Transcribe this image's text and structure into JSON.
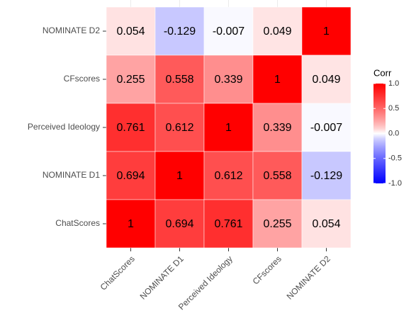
{
  "chart_data": {
    "type": "heatmap",
    "x_categories": [
      "ChatScores",
      "NOMINATE D1",
      "Perceived Ideology",
      "CFscores",
      "NOMINATE D2"
    ],
    "y_categories": [
      "NOMINATE D2",
      "CFscores",
      "Perceived Ideology",
      "NOMINATE D1",
      "ChatScores"
    ],
    "matrix": [
      [
        0.054,
        -0.129,
        -0.007,
        0.049,
        1
      ],
      [
        0.255,
        0.558,
        0.339,
        1,
        0.049
      ],
      [
        0.761,
        0.612,
        1,
        0.339,
        -0.007
      ],
      [
        0.694,
        1,
        0.612,
        0.558,
        -0.129
      ],
      [
        1,
        0.694,
        0.761,
        0.255,
        0.054
      ]
    ],
    "legend_title": "Corr",
    "colorbar_lim": [
      -1,
      1
    ],
    "colorbar_ticks": [
      {
        "value": 1,
        "label": "1.0"
      },
      {
        "value": 0.5,
        "label": "0.5"
      },
      {
        "value": 0,
        "label": "0.0"
      },
      {
        "value": -0.5,
        "label": "-0.5"
      },
      {
        "value": -1,
        "label": "-1.0"
      }
    ],
    "colors": {
      "low": "#0000ff",
      "mid": "#ffffff",
      "high": "#ff0000"
    }
  }
}
